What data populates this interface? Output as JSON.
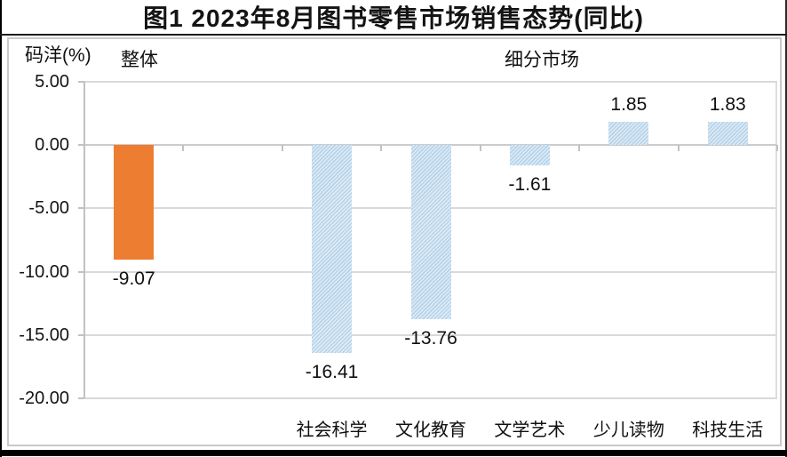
{
  "page": {
    "title": "图1 2023年8月图书零售市场销售态势(同比)"
  },
  "chart": {
    "y_axis_title": "码洋(%)",
    "overall_label": "整体",
    "segments_label": "细分市场"
  },
  "chart_data": {
    "type": "bar",
    "title": "图1 2023年8月图书零售市场销售态势(同比)",
    "xlabel": "",
    "ylabel": "码洋(%)",
    "ylim": [
      -20,
      5
    ],
    "grid": true,
    "legend": "none",
    "y_ticks": [
      5,
      0,
      -5,
      -10,
      -15,
      -20
    ],
    "y_tick_labels": [
      "5.00",
      "0.00",
      "-5.00",
      "-10.00",
      "-15.00",
      "-20.00"
    ],
    "groups": [
      {
        "label": "整体",
        "categories": [
          "整体"
        ]
      },
      {
        "label": "细分市场",
        "categories": [
          "社会科学",
          "文化教育",
          "文学艺术",
          "少儿读物",
          "科技生活"
        ]
      }
    ],
    "bars": [
      {
        "category": "整体",
        "value": -9.07,
        "value_label": "-9.07",
        "group": "整体",
        "color": "#ED7D31",
        "style": "solid"
      },
      {
        "category": "社会科学",
        "value": -16.41,
        "value_label": "-16.41",
        "group": "细分市场",
        "color": "#BDD7EE",
        "style": "hatched"
      },
      {
        "category": "文化教育",
        "value": -13.76,
        "value_label": "-13.76",
        "group": "细分市场",
        "color": "#BDD7EE",
        "style": "hatched"
      },
      {
        "category": "文学艺术",
        "value": -1.61,
        "value_label": "-1.61",
        "group": "细分市场",
        "color": "#BDD7EE",
        "style": "hatched"
      },
      {
        "category": "少儿读物",
        "value": 1.85,
        "value_label": "1.85",
        "group": "细分市场",
        "color": "#BDD7EE",
        "style": "hatched"
      },
      {
        "category": "科技生活",
        "value": 1.83,
        "value_label": "1.83",
        "group": "细分市场",
        "color": "#BDD7EE",
        "style": "hatched"
      }
    ],
    "colors": {
      "overall_bar": "#ED7D31",
      "segment_bar": "#BDD7EE",
      "gridline": "#D9D9D9",
      "axis": "#C2C2C2",
      "text": "#111111"
    }
  }
}
